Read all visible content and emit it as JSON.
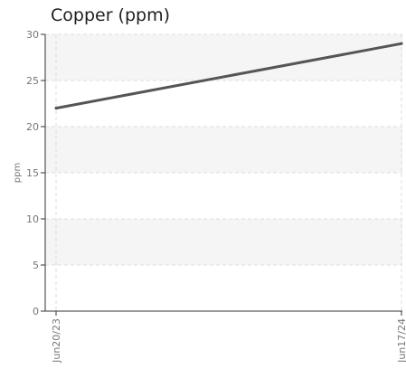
{
  "chart_data": {
    "type": "line",
    "title": "Copper (ppm)",
    "xlabel": "",
    "ylabel": "ppm",
    "x": [
      "Jun20/23",
      "Jun17/24"
    ],
    "series": [
      {
        "values": [
          22,
          29
        ]
      }
    ],
    "ylim": [
      0,
      30
    ],
    "yticks": [
      0,
      5,
      10,
      15,
      20,
      25,
      30
    ],
    "grid": true,
    "legend": "none",
    "colors": {
      "line": "#555555",
      "band": "#f5f5f5",
      "grid": "#dddddd",
      "axis": "#333333",
      "text": "#777777"
    }
  }
}
